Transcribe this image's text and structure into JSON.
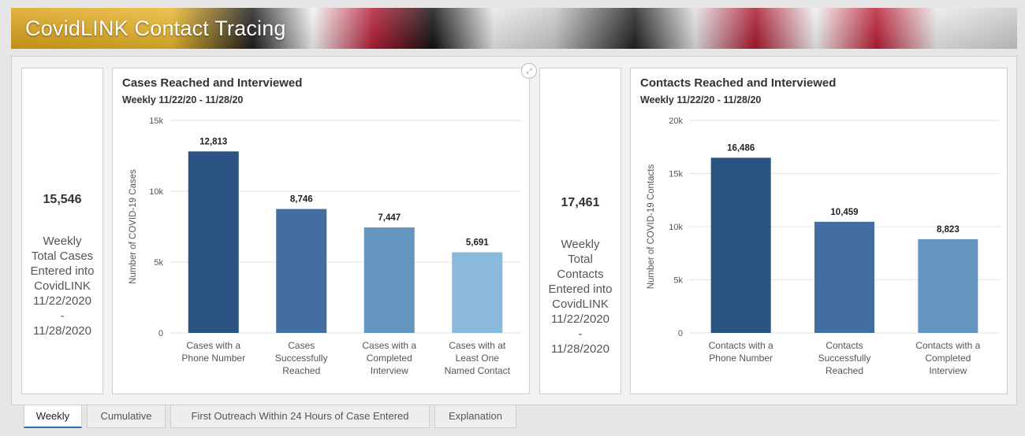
{
  "header": {
    "title": "CovidLINK Contact Tracing"
  },
  "indicators": [
    {
      "value": "15,546",
      "text": "Weekly\nTotal Cases\nEntered into\nCovidLINK\n11/22/2020\n-\n11/28/2020"
    },
    {
      "value": "17,461",
      "text": "Weekly\nTotal\nContacts\nEntered into\nCovidLINK\n11/22/2020\n-\n11/28/2020"
    }
  ],
  "colors": [
    "#2a5382",
    "#426f9f",
    "#6395bf",
    "#8ab9dc"
  ],
  "chart_data": [
    {
      "type": "bar",
      "title": "Cases Reached and Interviewed",
      "subtitle": "Weekly 11/22/20 - 11/28/20",
      "ylabel": "Number of COVID-19 Cases",
      "ylim": [
        0,
        15000
      ],
      "yticks": [
        0,
        5000,
        10000,
        15000
      ],
      "ytick_labels": [
        "0",
        "5k",
        "10k",
        "15k"
      ],
      "categories": [
        [
          "Cases with a",
          "Phone Number"
        ],
        [
          "Cases",
          "Successfully",
          "Reached"
        ],
        [
          "Cases with a",
          "Completed",
          "Interview"
        ],
        [
          "Cases with at",
          "Least One",
          "Named Contact"
        ]
      ],
      "values": [
        12813,
        8746,
        7447,
        5691
      ],
      "data_labels": [
        "12,813",
        "8,746",
        "7,447",
        "5,691"
      ],
      "grid": true
    },
    {
      "type": "bar",
      "title": "Contacts Reached and Interviewed",
      "subtitle": "Weekly 11/22/20 - 11/28/20",
      "ylabel": "Number of COVID-19 Contacts",
      "ylim": [
        0,
        20000
      ],
      "yticks": [
        0,
        5000,
        10000,
        15000,
        20000
      ],
      "ytick_labels": [
        "0",
        "5k",
        "10k",
        "15k",
        "20k"
      ],
      "categories": [
        [
          "Contacts with a",
          "Phone Number"
        ],
        [
          "Contacts",
          "Successfully",
          "Reached"
        ],
        [
          "Contacts with a",
          "Completed",
          "Interview"
        ]
      ],
      "values": [
        16486,
        10459,
        8823
      ],
      "data_labels": [
        "16,486",
        "10,459",
        "8,823"
      ],
      "grid": true
    }
  ],
  "expand_icon": "expand-icon",
  "tabs": [
    {
      "label": "Weekly",
      "active": true
    },
    {
      "label": "Cumulative",
      "active": false
    },
    {
      "label": "First Outreach Within 24 Hours of Case Entered",
      "active": false
    },
    {
      "label": "Explanation",
      "active": false
    }
  ]
}
